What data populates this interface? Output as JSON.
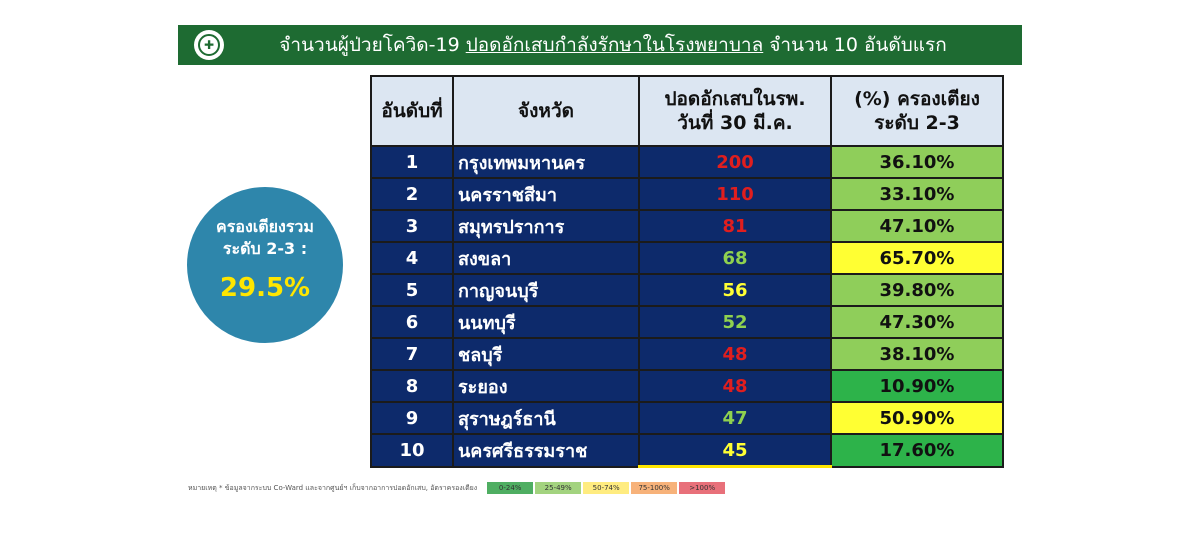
{
  "header": {
    "title_pre": "จำนวนผู้ป่วยโควิด-19 ",
    "title_underlined": "ปอดอักเสบกำลังรักษาในโรงพยาบาล",
    "title_post": " จำนวน 10 อันดับแรก"
  },
  "summary": {
    "line1": "ครองเตียงรวม",
    "line2": "ระดับ 2-3 :",
    "value": "29.5%"
  },
  "chart_data": {
    "type": "table",
    "columns": [
      "อันดับที่",
      "จังหวัด",
      "ปอดอักเสบในรพ. วันที่ 30 มี.ค.",
      "(%) ครองเตียง ระดับ 2-3"
    ],
    "column_lines": {
      "value": [
        "ปอดอักเสบในรพ.",
        "วันที่ 30 มี.ค."
      ],
      "pct": [
        "(%) ครองเตียง",
        "ระดับ 2-3"
      ]
    },
    "rows": [
      {
        "rank": "1",
        "province": "กรุงเทพมหานคร",
        "value": "200",
        "pct": "36.10%",
        "value_color": "#e01e1e",
        "pct_color": "#8fce5a"
      },
      {
        "rank": "2",
        "province": "นครราชสีมา",
        "value": "110",
        "pct": "33.10%",
        "value_color": "#e01e1e",
        "pct_color": "#8fce5a"
      },
      {
        "rank": "3",
        "province": "สมุทรปราการ",
        "value": "81",
        "pct": "47.10%",
        "value_color": "#e01e1e",
        "pct_color": "#8fce5a"
      },
      {
        "rank": "4",
        "province": "สงขลา",
        "value": "68",
        "pct": "65.70%",
        "value_color": "#8fd14f",
        "pct_color": "#ffff33"
      },
      {
        "rank": "5",
        "province": "กาญจนบุรี",
        "value": "56",
        "pct": "39.80%",
        "value_color": "#ffff33",
        "pct_color": "#8fce5a"
      },
      {
        "rank": "6",
        "province": "นนทบุรี",
        "value": "52",
        "pct": "47.30%",
        "value_color": "#8fd14f",
        "pct_color": "#8fce5a"
      },
      {
        "rank": "7",
        "province": "ชลบุรี",
        "value": "48",
        "pct": "38.10%",
        "value_color": "#e01e1e",
        "pct_color": "#8fce5a"
      },
      {
        "rank": "8",
        "province": "ระยอง",
        "value": "48",
        "pct": "10.90%",
        "value_color": "#e01e1e",
        "pct_color": "#2db34a"
      },
      {
        "rank": "9",
        "province": "สุราษฎร์ธานี",
        "value": "47",
        "pct": "50.90%",
        "value_color": "#8fd14f",
        "pct_color": "#ffff33"
      },
      {
        "rank": "10",
        "province": "นครศรีธรรมราช",
        "value": "45",
        "pct": "17.60%",
        "value_color": "#ffff33",
        "pct_color": "#2db34a"
      }
    ]
  },
  "footer": {
    "note": "หมายเหตุ * ข้อมูลจากระบบ Co-Ward และจากศูนย์ฯ เก็บจากอาการปอดอักเสบ, อัตราครองเตียง",
    "legend": [
      {
        "label": "0-24%",
        "color": "#4fae62"
      },
      {
        "label": "25-49%",
        "color": "#a3d37f"
      },
      {
        "label": "50-74%",
        "color": "#ffec80"
      },
      {
        "label": "75-100%",
        "color": "#f7b27a"
      },
      {
        "label": ">100%",
        "color": "#e8707a"
      }
    ]
  }
}
